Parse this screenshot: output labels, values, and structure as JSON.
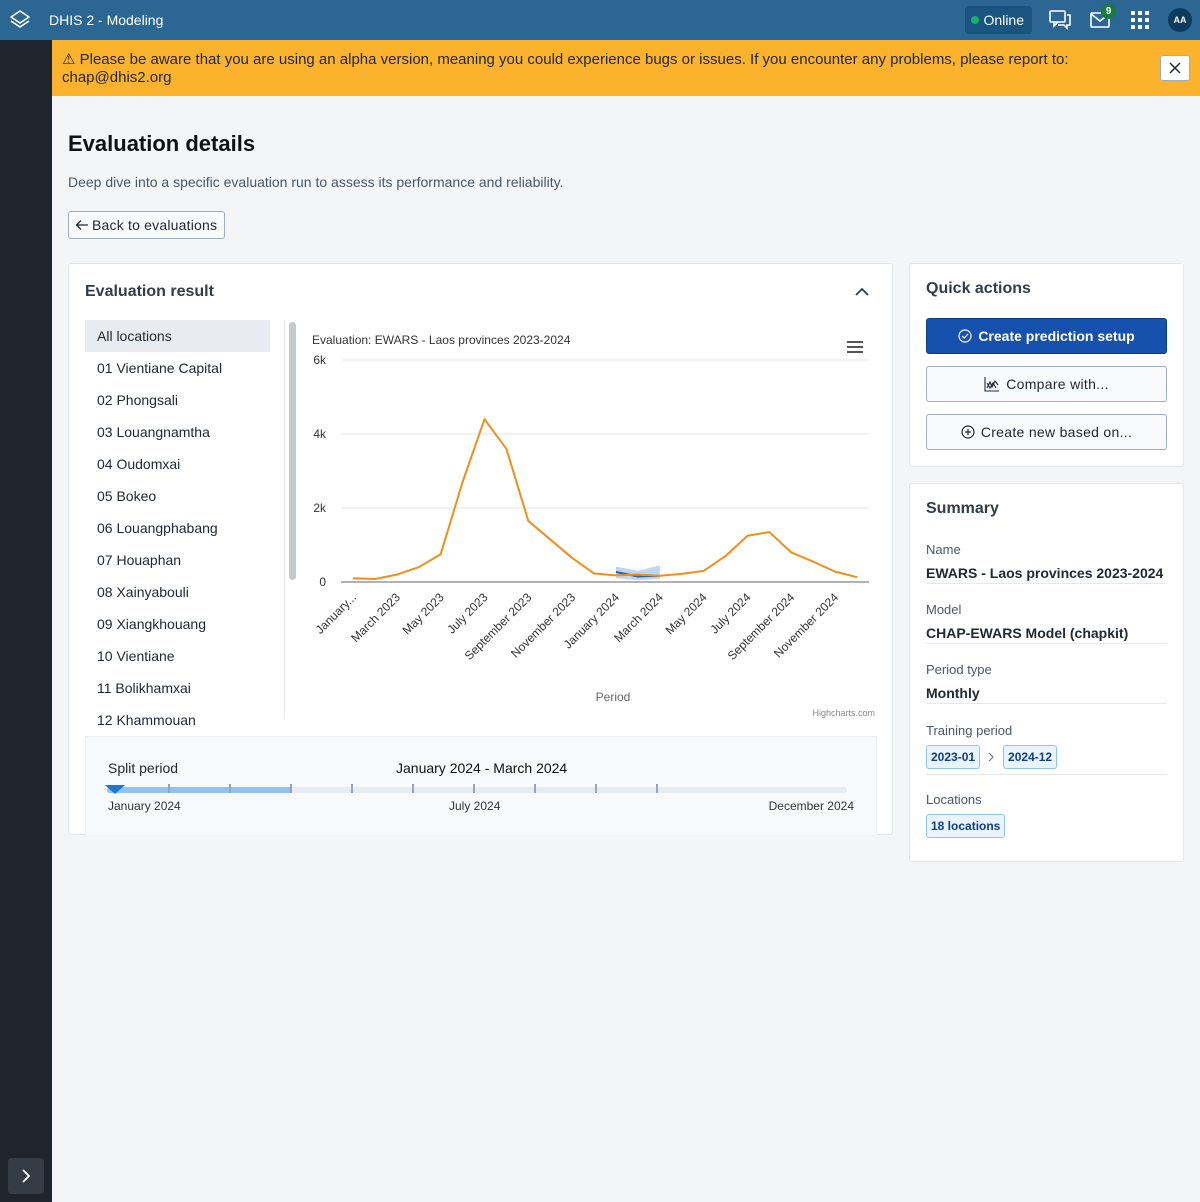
{
  "header": {
    "app_title": "DHIS 2 - Modeling",
    "online_label": "Online",
    "messages_count": "9",
    "avatar_initials": "AA"
  },
  "alert": {
    "message": "⚠ Please be aware that you are using an alpha version, meaning you could experience bugs or issues. If you encounter any problems, please report to: chap@dhis2.org"
  },
  "page": {
    "title": "Evaluation details",
    "subtitle": "Deep dive into a specific evaluation run to assess its performance and reliability.",
    "back_label": "Back to evaluations"
  },
  "evaluation_result": {
    "title": "Evaluation result",
    "locations": [
      "All locations",
      "01 Vientiane Capital",
      "02 Phongsali",
      "03 Louangnamtha",
      "04 Oudomxai",
      "05 Bokeo",
      "06 Louangphabang",
      "07 Houaphan",
      "08 Xainyabouli",
      "09 Xiangkhouang",
      "10 Vientiane",
      "11 Bolikhamxai",
      "12 Khammouan"
    ],
    "credits": "Highcharts.com"
  },
  "chart_data": {
    "type": "line",
    "title": "Evaluation: EWARS - Laos provinces 2023-2024",
    "xlabel": "Period",
    "ylabel": "",
    "ylim": [
      0,
      6000
    ],
    "y_ticks": [
      "0",
      "2k",
      "4k",
      "6k"
    ],
    "x_tick_labels": [
      "January...",
      "March 2023",
      "May 2023",
      "July 2023",
      "September 2023",
      "November 2023",
      "January 2024",
      "March 2024",
      "May 2024",
      "July 2024",
      "September 2024",
      "November 2024"
    ],
    "x": [
      "2023-01",
      "2023-02",
      "2023-03",
      "2023-04",
      "2023-05",
      "2023-06",
      "2023-07",
      "2023-08",
      "2023-09",
      "2023-10",
      "2023-11",
      "2023-12",
      "2024-01",
      "2024-02",
      "2024-03",
      "2024-04",
      "2024-05",
      "2024-06",
      "2024-07",
      "2024-08",
      "2024-09",
      "2024-10",
      "2024-11",
      "2024-12"
    ],
    "series": [
      {
        "color": "#f28e1a",
        "values": [
          100,
          80,
          200,
          400,
          750,
          2700,
          4400,
          3600,
          1650,
          1150,
          650,
          230,
          180,
          200,
          170,
          220,
          300,
          700,
          1250,
          1350,
          800,
          550,
          280,
          130
        ]
      },
      {
        "color": "#1e63c7",
        "x": [
          "2024-01",
          "2024-02",
          "2024-03"
        ],
        "values": [
          270,
          150,
          170
        ],
        "lower": [
          100,
          50,
          80
        ],
        "upper": [
          420,
          300,
          450
        ]
      }
    ],
    "grid": true,
    "legend": "none"
  },
  "split_period": {
    "label": "Split period",
    "selected_range": "January 2024 - March 2024",
    "start_label": "January 2024",
    "mid_label": "July 2024",
    "end_label": "December 2024",
    "selected_fraction": 0.25
  },
  "quick_actions": {
    "title": "Quick actions",
    "create_prediction": "Create prediction setup",
    "compare_with": "Compare with...",
    "create_new_based": "Create new based on..."
  },
  "summary": {
    "title": "Summary",
    "name_label": "Name",
    "name_value": "EWARS - Laos provinces 2023-2024",
    "model_label": "Model",
    "model_value": "CHAP-EWARS Model (chapkit)",
    "period_type_label": "Period type",
    "period_type_value": "Monthly",
    "training_label": "Training period",
    "training_start": "2023-01",
    "training_end": "2024-12",
    "locations_label": "Locations",
    "locations_value": "18 locations"
  }
}
